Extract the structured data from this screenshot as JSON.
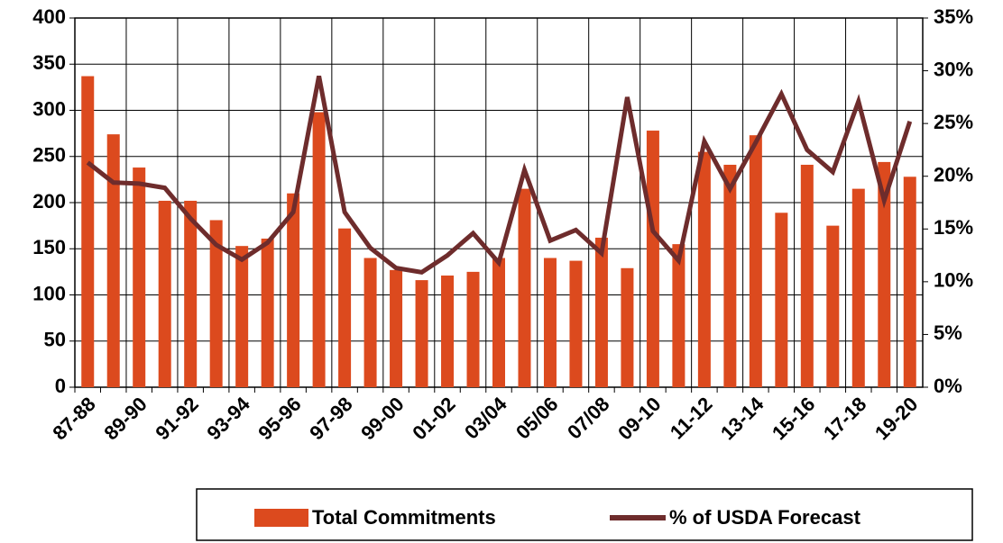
{
  "chart_data": {
    "type": "bar",
    "categories": [
      "87-88",
      null,
      "89-90",
      null,
      "91-92",
      null,
      "93-94",
      null,
      "95-96",
      null,
      "97-98",
      null,
      "99-00",
      null,
      "01-02",
      null,
      "03/04",
      null,
      "05/06",
      null,
      "07/08",
      null,
      "09-10",
      null,
      "11-12",
      null,
      "13-14",
      null,
      "15-16",
      null,
      "17-18",
      null,
      "19-20"
    ],
    "series": [
      {
        "name": "Total Commitments",
        "type": "bar",
        "color": "#dc4a1e",
        "values": [
          337,
          274,
          238,
          202,
          202,
          181,
          153,
          161,
          210,
          298,
          172,
          140,
          127,
          116,
          121,
          125,
          140,
          215,
          140,
          137,
          162,
          129,
          278,
          155,
          255,
          241,
          273,
          189,
          241,
          175,
          215,
          244,
          228
        ]
      },
      {
        "name": "% of USDA Forecast",
        "type": "line",
        "axis": "y2",
        "color": "#6e2c2c",
        "values": [
          21.3,
          19.4,
          19.3,
          18.9,
          16,
          13.5,
          12.1,
          13.7,
          16.6,
          29.5,
          16.6,
          13.2,
          11.3,
          10.9,
          12.5,
          14.6,
          11.8,
          20.6,
          13.9,
          14.9,
          12.7,
          27.5,
          14.8,
          12,
          23.3,
          18.8,
          23.2,
          27.8,
          22.5,
          20.4,
          27.1,
          17.7,
          25.2
        ]
      }
    ],
    "ylim": [
      0,
      400
    ],
    "yticks": [
      0,
      50,
      100,
      150,
      200,
      250,
      300,
      350,
      400
    ],
    "y2lim": [
      0,
      35
    ],
    "y2ticks": [
      {
        "value": 0,
        "label": "0%"
      },
      {
        "value": 5,
        "label": "5%"
      },
      {
        "value": 10,
        "label": "10%"
      },
      {
        "value": 15,
        "label": "15%"
      },
      {
        "value": 20,
        "label": "20%"
      },
      {
        "value": 25,
        "label": "25%"
      },
      {
        "value": 30,
        "label": "30%"
      },
      {
        "value": 35,
        "label": "35%"
      }
    ],
    "grid": true
  }
}
